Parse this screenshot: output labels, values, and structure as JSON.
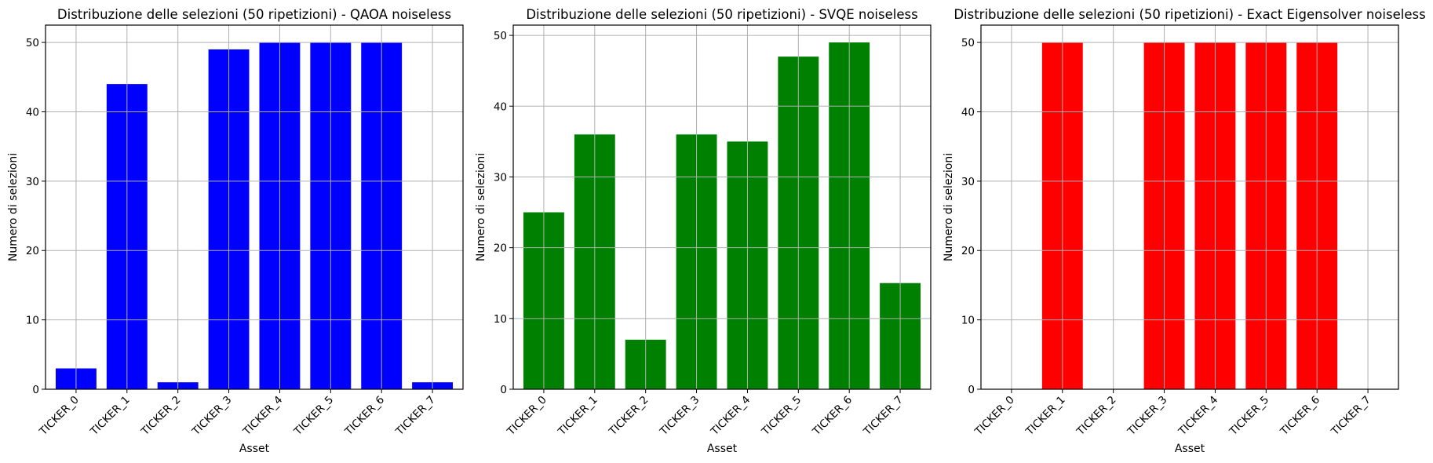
{
  "chart_data": [
    {
      "type": "bar",
      "title": "Distribuzione delle selezioni (50 ripetizioni) - QAOA noiseless",
      "xlabel": "Asset",
      "ylabel": "Numero di selezioni",
      "categories": [
        "TICKER_0",
        "TICKER_1",
        "TICKER_2",
        "TICKER_3",
        "TICKER_4",
        "TICKER_5",
        "TICKER_6",
        "TICKER_7"
      ],
      "values": [
        3,
        44,
        1,
        49,
        50,
        50,
        50,
        1
      ],
      "ylim": [
        0,
        52.5
      ],
      "yticks": [
        0,
        10,
        20,
        30,
        40,
        50
      ],
      "color": "#0000ff",
      "grid": true
    },
    {
      "type": "bar",
      "title": "Distribuzione delle selezioni (50 ripetizioni) - SVQE noiseless",
      "xlabel": "Asset",
      "ylabel": "Numero di selezioni",
      "categories": [
        "TICKER_0",
        "TICKER_1",
        "TICKER_2",
        "TICKER_3",
        "TICKER_4",
        "TICKER_5",
        "TICKER_6",
        "TICKER_7"
      ],
      "values": [
        25,
        36,
        7,
        36,
        35,
        47,
        49,
        15
      ],
      "ylim": [
        0,
        51.45
      ],
      "yticks": [
        0,
        10,
        20,
        30,
        40,
        50
      ],
      "color": "#008000",
      "grid": true
    },
    {
      "type": "bar",
      "title": "Distribuzione delle selezioni (50 ripetizioni) - Exact Eigensolver noiseless",
      "xlabel": "Asset",
      "ylabel": "Numero di selezioni",
      "categories": [
        "TICKER_0",
        "TICKER_1",
        "TICKER_2",
        "TICKER_3",
        "TICKER_4",
        "TICKER_5",
        "TICKER_6",
        "TICKER_7"
      ],
      "values": [
        0,
        50,
        0,
        50,
        50,
        50,
        50,
        0
      ],
      "ylim": [
        0,
        52.5
      ],
      "yticks": [
        0,
        10,
        20,
        30,
        40,
        50
      ],
      "color": "#ff0000",
      "grid": true
    }
  ]
}
